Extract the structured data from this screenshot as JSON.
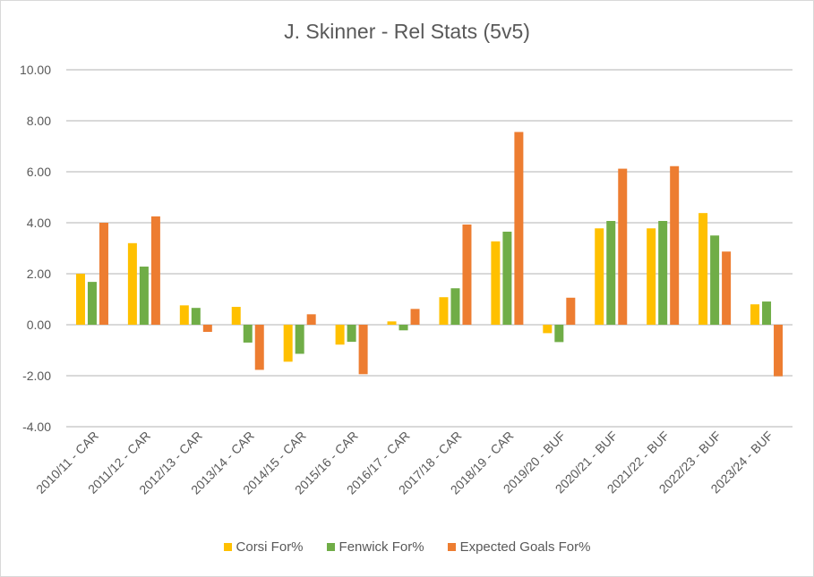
{
  "chart_data": {
    "type": "bar",
    "title": "J. Skinner - Rel Stats (5v5)",
    "xlabel": "",
    "ylabel": "",
    "ylim": [
      -4,
      10
    ],
    "yticks": [
      "10.00",
      "8.00",
      "6.00",
      "4.00",
      "2.00",
      "0.00",
      "-2.00",
      "-4.00"
    ],
    "ytick_values": [
      10,
      8,
      6,
      4,
      2,
      0,
      -2,
      -4
    ],
    "grid": true,
    "legend_position": "bottom",
    "categories": [
      "2010/11 - CAR",
      "2011/12 - CAR",
      "2012/13 - CAR",
      "2013/14 - CAR",
      "2014/15 - CAR",
      "2015/16 - CAR",
      "2016/17 - CAR",
      "2017/18 - CAR",
      "2018/19 - CAR",
      "2019/20 - BUF",
      "2020/21 - BUF",
      "2021/22 - BUF",
      "2022/23 - BUF",
      "2023/24 - BUF"
    ],
    "series": [
      {
        "name": "Corsi For%",
        "color": "#ffc000",
        "values": [
          2.0,
          3.2,
          0.76,
          0.7,
          -1.45,
          -0.78,
          0.13,
          1.08,
          3.27,
          -0.33,
          3.78,
          3.78,
          4.38,
          0.8
        ]
      },
      {
        "name": "Fenwick For%",
        "color": "#70ad47",
        "values": [
          1.68,
          2.28,
          0.66,
          -0.7,
          -1.14,
          -0.67,
          -0.22,
          1.43,
          3.65,
          -0.68,
          4.07,
          4.07,
          3.5,
          0.91
        ]
      },
      {
        "name": "Expected Goals For%",
        "color": "#ed7d31",
        "values": [
          4.0,
          4.25,
          -0.28,
          -1.77,
          0.41,
          -1.94,
          0.62,
          3.93,
          7.56,
          1.06,
          6.12,
          6.22,
          2.87,
          -2.02
        ]
      }
    ]
  }
}
